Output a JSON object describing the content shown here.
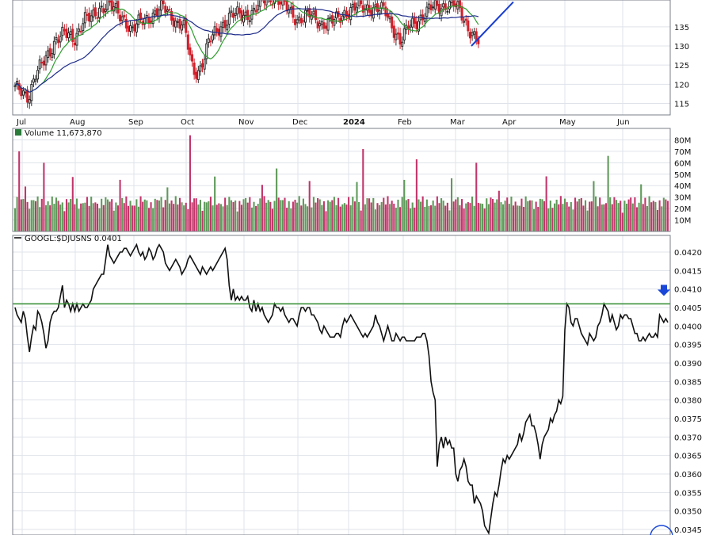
{
  "chart_data": [
    {
      "type": "candlestick",
      "panel": "price",
      "ylim": [
        112,
        142
      ],
      "yticks": [
        "135",
        "130",
        "125",
        "120",
        "115"
      ],
      "x_months": [
        "Jul",
        "Aug",
        "Sep",
        "Oct",
        "Nov",
        "Dec",
        "2024",
        "Feb",
        "Mar",
        "Apr",
        "May",
        "Jun"
      ],
      "overlays": [
        {
          "kind": "short-moving-average",
          "color": "#2e9e2e"
        },
        {
          "kind": "long-moving-average",
          "color": "#1c2a8a"
        },
        {
          "kind": "trendline",
          "color": "#1a3fd0"
        }
      ],
      "colors": {
        "up": "#2a2a2a",
        "down": "#d21f2a"
      }
    },
    {
      "type": "bar",
      "panel": "volume",
      "label": "Volume 11,673,870",
      "ylim": [
        0,
        90
      ],
      "yticks": [
        "80M",
        "70M",
        "60M",
        "50M",
        "40M",
        "30M",
        "20M",
        "10M"
      ],
      "colors": {
        "up": "#5f9a5a",
        "down": "#c2356a"
      }
    },
    {
      "type": "line",
      "panel": "relative-strength",
      "label": "GOOGL:$DJUSNS 0.0401",
      "ylim": [
        0.03435,
        0.04245
      ],
      "yticks": [
        "0.0420",
        "0.0415",
        "0.0410",
        "0.0405",
        "0.0400",
        "0.0395",
        "0.0390",
        "0.0385",
        "0.0380",
        "0.0375",
        "0.0370",
        "0.0365",
        "0.0360",
        "0.0355",
        "0.0350",
        "0.0345"
      ],
      "horizontal_line": {
        "value": 0.0406,
        "color": "#2e8b2e"
      },
      "last_value_arrow": {
        "color": "#1a47d8"
      },
      "series": [
        {
          "values": [
            0.0405,
            0.0403,
            0.0402,
            0.0401,
            0.0404,
            0.0402,
            0.0397,
            0.0393,
            0.0397,
            0.04,
            0.0399,
            0.0404,
            0.0403,
            0.0401,
            0.0398,
            0.0394,
            0.0396,
            0.0401,
            0.0403,
            0.0404,
            0.0404,
            0.0405,
            0.0408,
            0.0411,
            0.0405,
            0.0407,
            0.0406,
            0.0404,
            0.0406,
            0.0404,
            0.0406,
            0.0404,
            0.0405,
            0.0406,
            0.0405,
            0.0405,
            0.0406,
            0.0407,
            0.041,
            0.0411,
            0.0412,
            0.0413,
            0.0414,
            0.0414,
            0.0418,
            0.0422,
            0.0419,
            0.0418,
            0.0417,
            0.0418,
            0.0419,
            0.042,
            0.042,
            0.0421,
            0.0421,
            0.042,
            0.0419,
            0.042,
            0.0421,
            0.0422,
            0.042,
            0.0419,
            0.042,
            0.0418,
            0.0419,
            0.0421,
            0.042,
            0.0418,
            0.0419,
            0.0421,
            0.0422,
            0.0421,
            0.042,
            0.0417,
            0.0416,
            0.0415,
            0.0416,
            0.0417,
            0.0418,
            0.0417,
            0.0416,
            0.0414,
            0.0415,
            0.0416,
            0.0418,
            0.0419,
            0.0418,
            0.0417,
            0.0416,
            0.0415,
            0.0414,
            0.0416,
            0.0415,
            0.0414,
            0.0415,
            0.0416,
            0.0415,
            0.0416,
            0.0417,
            0.0418,
            0.0419,
            0.042,
            0.0421,
            0.0418,
            0.0411,
            0.0407,
            0.041,
            0.0407,
            0.0408,
            0.0407,
            0.0408,
            0.0407,
            0.0407,
            0.0408,
            0.0405,
            0.0404,
            0.0407,
            0.0404,
            0.0406,
            0.0404,
            0.0405,
            0.0403,
            0.0402,
            0.0401,
            0.0402,
            0.0403,
            0.0406,
            0.0405,
            0.0405,
            0.0404,
            0.0405,
            0.0403,
            0.0402,
            0.0401,
            0.0402,
            0.0402,
            0.0401,
            0.04,
            0.0403,
            0.0405,
            0.0405,
            0.0404,
            0.0405,
            0.0405,
            0.0403,
            0.0403,
            0.0402,
            0.0401,
            0.0399,
            0.0398,
            0.04,
            0.0399,
            0.0398,
            0.0397,
            0.0397,
            0.0397,
            0.0398,
            0.0398,
            0.0397,
            0.04,
            0.0402,
            0.0401,
            0.0402,
            0.0403,
            0.0402,
            0.0401,
            0.04,
            0.0399,
            0.0398,
            0.0397,
            0.0398,
            0.0397,
            0.0398,
            0.0399,
            0.04,
            0.0403,
            0.0401,
            0.04,
            0.0398,
            0.0396,
            0.0398,
            0.04,
            0.0398,
            0.0396,
            0.0396,
            0.0398,
            0.0397,
            0.0396,
            0.0397,
            0.0397,
            0.0396,
            0.0396,
            0.0396,
            0.0396,
            0.0396,
            0.0397,
            0.0397,
            0.0397,
            0.0398,
            0.0398,
            0.0396,
            0.0392,
            0.0385,
            0.0382,
            0.038,
            0.0362,
            0.0368,
            0.037,
            0.0367,
            0.037,
            0.0368,
            0.0369,
            0.0367,
            0.0367,
            0.036,
            0.0358,
            0.0361,
            0.0362,
            0.0364,
            0.0362,
            0.0358,
            0.0357,
            0.0357,
            0.0352,
            0.0354,
            0.0353,
            0.0352,
            0.035,
            0.0346,
            0.0345,
            0.0344,
            0.0348,
            0.0352,
            0.0355,
            0.0354,
            0.0357,
            0.0361,
            0.0364,
            0.0363,
            0.0365,
            0.0364,
            0.0365,
            0.0366,
            0.0367,
            0.0368,
            0.0371,
            0.0369,
            0.0371,
            0.0374,
            0.0375,
            0.0376,
            0.0373,
            0.0373,
            0.0371,
            0.0368,
            0.0364,
            0.0368,
            0.037,
            0.0371,
            0.0372,
            0.0375,
            0.0374,
            0.0376,
            0.0377,
            0.038,
            0.0379,
            0.0381,
            0.0399,
            0.0406,
            0.0405,
            0.0401,
            0.04,
            0.0402,
            0.0402,
            0.04,
            0.0398,
            0.0397,
            0.0396,
            0.0395,
            0.0398,
            0.0397,
            0.0396,
            0.0397,
            0.04,
            0.0401,
            0.0403,
            0.0406,
            0.0405,
            0.0404,
            0.0401,
            0.0403,
            0.0401,
            0.0399,
            0.04,
            0.0403,
            0.0402,
            0.0403,
            0.0403,
            0.0402,
            0.0402,
            0.04,
            0.0398,
            0.0398,
            0.0396,
            0.0396,
            0.0397,
            0.0396,
            0.0397,
            0.0398,
            0.0397,
            0.0397,
            0.0398,
            0.0397,
            0.0403,
            0.0402,
            0.0401,
            0.0402,
            0.0401
          ]
        }
      ]
    }
  ]
}
